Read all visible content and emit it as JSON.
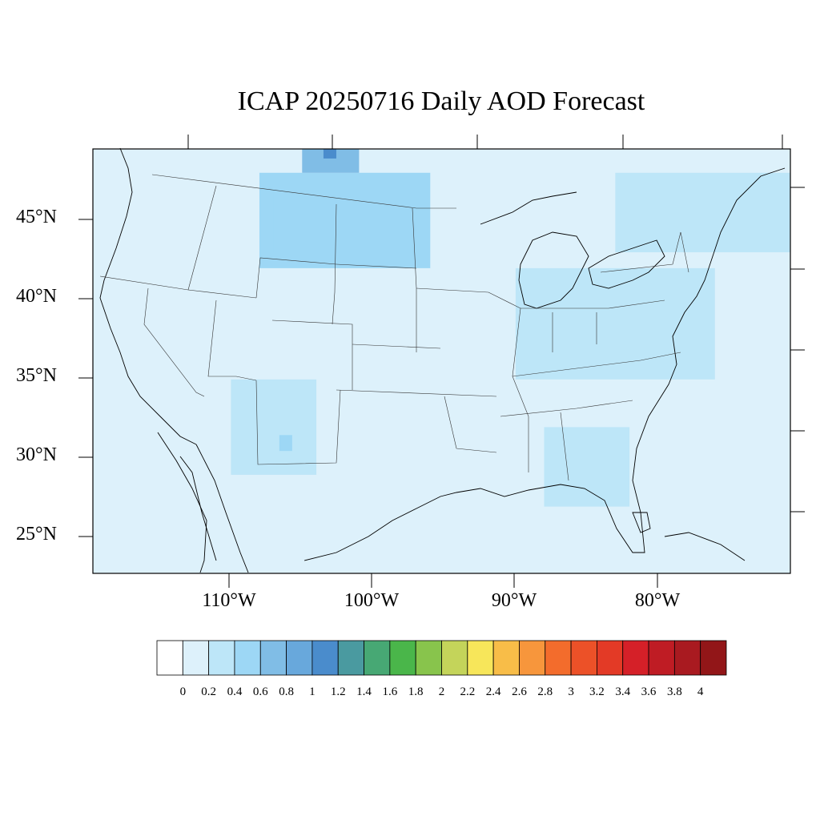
{
  "title": "ICAP 20250716 Daily AOD Forecast",
  "lat_labels": [
    "45°N",
    "40°N",
    "35°N",
    "30°N",
    "25°N"
  ],
  "lon_labels": [
    "110°W",
    "100°W",
    "90°W",
    "80°W"
  ],
  "map_extent": {
    "lon_min": -119.7,
    "lon_max": -70.7,
    "lat_min": 22.8,
    "lat_max": 49.5
  },
  "colorbar": {
    "colors": [
      "#ffffff",
      "#ddf1fb",
      "#bde6f8",
      "#9dd7f5",
      "#80bde6",
      "#68a8dc",
      "#4a8ccc",
      "#4a9aa0",
      "#47a874",
      "#4ab64a",
      "#88c44c",
      "#c4d45a",
      "#f7e65a",
      "#f8bd48",
      "#f7963c",
      "#f36c2c",
      "#ec5128",
      "#e33a26",
      "#d52028",
      "#bf1c24",
      "#a91a20",
      "#921618"
    ],
    "labels": [
      "0",
      "0.2",
      "0.4",
      "0.6",
      "0.8",
      "1",
      "1.2",
      "1.4",
      "1.6",
      "1.8",
      "2",
      "2.2",
      "2.4",
      "2.6",
      "2.8",
      "3",
      "3.2",
      "3.4",
      "3.6",
      "3.8",
      "4"
    ]
  },
  "aod_cells": [
    {
      "lon": [
        -119.7,
        -70.7
      ],
      "lat": [
        22.8,
        49.5
      ],
      "value": 0.15
    },
    {
      "lon": [
        -108,
        -96
      ],
      "lat": [
        42,
        48
      ],
      "value": 0.45
    },
    {
      "lon": [
        -107,
        -98
      ],
      "lat": [
        43,
        47
      ],
      "value": 0.55
    },
    {
      "lon": [
        -105,
        -101
      ],
      "lat": [
        48,
        49.5
      ],
      "value": 0.7
    },
    {
      "lon": [
        -103.5,
        -102.6
      ],
      "lat": [
        48.9,
        49.5
      ],
      "value": 1.2
    },
    {
      "lon": [
        -110,
        -104
      ],
      "lat": [
        29,
        35
      ],
      "value": 0.3
    },
    {
      "lon": [
        -106.6,
        -105.7
      ],
      "lat": [
        30.5,
        31.5
      ],
      "value": 0.6
    },
    {
      "lon": [
        -90,
        -76
      ],
      "lat": [
        35,
        42
      ],
      "value": 0.25
    },
    {
      "lon": [
        -88,
        -82
      ],
      "lat": [
        27,
        32
      ],
      "value": 0.25
    },
    {
      "lon": [
        -83,
        -70.7
      ],
      "lat": [
        43,
        48
      ],
      "value": 0.3
    }
  ]
}
